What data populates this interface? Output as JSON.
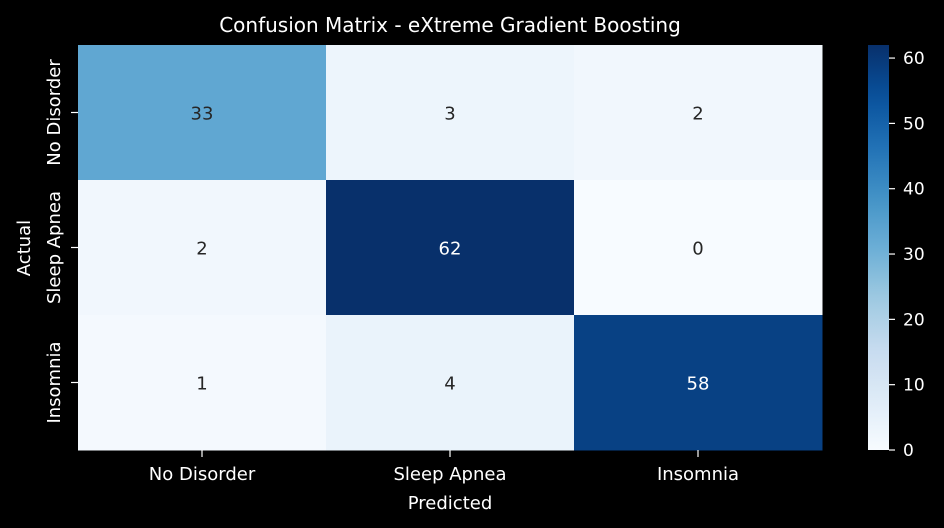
{
  "chart_data": {
    "type": "heatmap",
    "title": "Confusion Matrix - eXtreme Gradient Boosting",
    "xlabel": "Predicted",
    "ylabel": "Actual",
    "x_categories": [
      "No Disorder",
      "Sleep Apnea",
      "Insomnia"
    ],
    "y_categories": [
      "No Disorder",
      "Sleep Apnea",
      "Insomnia"
    ],
    "values": [
      [
        33,
        3,
        2
      ],
      [
        2,
        62,
        0
      ],
      [
        1,
        4,
        58
      ]
    ],
    "colormap": "Blues",
    "vmin": 0,
    "vmax": 62,
    "colorbar_ticks": [
      0,
      10,
      20,
      30,
      40,
      50,
      60
    ],
    "grid": false,
    "colors": {
      "background": "#000000",
      "text": "#ffffff",
      "annotation_dark": "#262626",
      "annotation_light": "#ffffff"
    }
  }
}
